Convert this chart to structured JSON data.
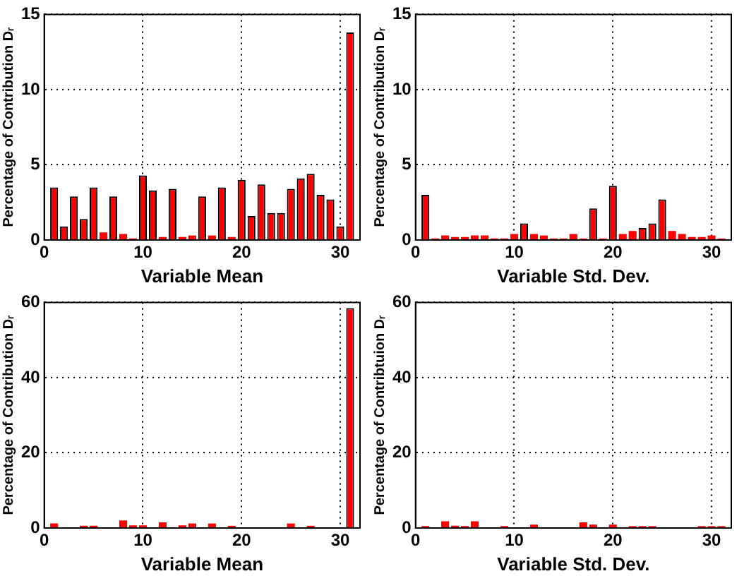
{
  "chart_data": [
    {
      "type": "bar",
      "xlabel": "Variable Mean",
      "ylabel": "Percentage of Contribution Dᵣ",
      "x": [
        1,
        2,
        3,
        4,
        5,
        6,
        7,
        8,
        9,
        10,
        11,
        12,
        13,
        14,
        15,
        16,
        17,
        18,
        19,
        20,
        21,
        22,
        23,
        24,
        25,
        26,
        27,
        28,
        29,
        30,
        31
      ],
      "values": [
        3.5,
        0.9,
        2.9,
        1.4,
        3.5,
        0.5,
        2.9,
        0.4,
        0.1,
        4.3,
        3.3,
        0.2,
        3.4,
        0.2,
        0.3,
        2.9,
        0.3,
        3.5,
        0.2,
        4.0,
        1.6,
        3.7,
        1.8,
        1.8,
        3.4,
        4.1,
        4.4,
        3.0,
        2.7,
        0.9,
        13.8
      ],
      "color": "#ff0000",
      "xlim": [
        0,
        32
      ],
      "xticks": [
        0,
        10,
        20,
        30
      ],
      "ylim": [
        0,
        15
      ],
      "yticks": [
        0,
        5,
        10,
        15
      ],
      "grid": true
    },
    {
      "type": "bar",
      "xlabel": "Variable Std. Dev.",
      "ylabel": "Percentage of Contribution Dᵣ",
      "x": [
        1,
        2,
        3,
        4,
        5,
        6,
        7,
        8,
        9,
        10,
        11,
        12,
        13,
        14,
        15,
        16,
        17,
        18,
        19,
        20,
        21,
        22,
        23,
        24,
        25,
        26,
        27,
        28,
        29,
        30,
        31
      ],
      "values": [
        3.0,
        0.1,
        0.3,
        0.2,
        0.2,
        0.3,
        0.3,
        0.1,
        0.1,
        0.4,
        1.1,
        0.4,
        0.3,
        0.1,
        0.1,
        0.4,
        0.1,
        2.1,
        0.1,
        3.6,
        0.4,
        0.6,
        0.8,
        1.1,
        2.7,
        0.6,
        0.4,
        0.2,
        0.2,
        0.3,
        0.1
      ],
      "color": "#ff0000",
      "xlim": [
        0,
        32
      ],
      "xticks": [
        0,
        10,
        20,
        30
      ],
      "ylim": [
        0,
        15
      ],
      "yticks": [
        0,
        5,
        10,
        15
      ],
      "grid": true
    },
    {
      "type": "bar",
      "xlabel": "Variable Mean",
      "ylabel": "Percentage of Contribution Dᵣ",
      "x": [
        1,
        2,
        3,
        4,
        5,
        6,
        7,
        8,
        9,
        10,
        11,
        12,
        13,
        14,
        15,
        16,
        17,
        18,
        19,
        20,
        21,
        22,
        23,
        24,
        25,
        26,
        27,
        28,
        29,
        30,
        31
      ],
      "values": [
        1.2,
        null,
        null,
        0.6,
        0.6,
        null,
        null,
        2.0,
        0.7,
        0.7,
        null,
        1.5,
        null,
        0.7,
        1.2,
        null,
        1.2,
        null,
        0.6,
        null,
        null,
        null,
        null,
        null,
        1.2,
        null,
        0.6,
        null,
        null,
        null,
        58.5
      ],
      "color": "#ff0000",
      "xlim": [
        0,
        32
      ],
      "xticks": [
        0,
        10,
        20,
        30
      ],
      "ylim": [
        0,
        60
      ],
      "yticks": [
        0,
        20,
        40,
        60
      ],
      "grid": true
    },
    {
      "type": "bar",
      "xlabel": "Variable Std. Dev.",
      "ylabel": "Percentage of Contribtuion Dᵣ",
      "x": [
        1,
        2,
        3,
        4,
        5,
        6,
        7,
        8,
        9,
        10,
        11,
        12,
        13,
        14,
        15,
        16,
        17,
        18,
        19,
        20,
        21,
        22,
        23,
        24,
        25,
        26,
        27,
        28,
        29,
        30,
        31
      ],
      "values": [
        0.5,
        null,
        1.8,
        0.6,
        0.5,
        1.8,
        null,
        null,
        0.5,
        null,
        null,
        0.9,
        null,
        null,
        null,
        null,
        1.5,
        0.9,
        null,
        0.9,
        null,
        0.5,
        0.5,
        0.5,
        null,
        null,
        null,
        null,
        0.5,
        0.5,
        0.5
      ],
      "color": "#ff0000",
      "xlim": [
        0,
        32
      ],
      "xticks": [
        0,
        10,
        20,
        30
      ],
      "ylim": [
        0,
        60
      ],
      "yticks": [
        0,
        20,
        40,
        60
      ],
      "grid": true
    }
  ]
}
